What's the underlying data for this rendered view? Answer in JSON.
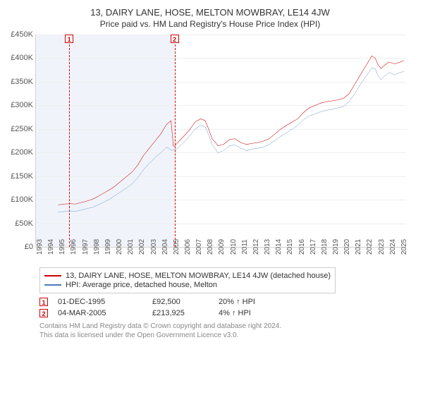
{
  "title": "13, DAIRY LANE, HOSE, MELTON MOWBRAY, LE14 4JW",
  "subtitle": "Price paid vs. HM Land Registry's House Price Index (HPI)",
  "chart": {
    "type": "line",
    "background_color": "#ffffff",
    "grid_color": "#eeeeee",
    "axis_color": "#d0d0d0",
    "pre_shade_color": "#f0f4fa",
    "x_range": [
      1993,
      2025.5
    ],
    "x_ticks": [
      1993,
      1994,
      1995,
      1996,
      1997,
      1998,
      1999,
      2000,
      2001,
      2002,
      2003,
      2004,
      2005,
      2006,
      2007,
      2008,
      2009,
      2010,
      2011,
      2012,
      2013,
      2014,
      2015,
      2016,
      2017,
      2018,
      2019,
      2020,
      2021,
      2022,
      2023,
      2024,
      2025
    ],
    "y_range": [
      0,
      450000
    ],
    "y_ticks": [
      0,
      50000,
      100000,
      150000,
      200000,
      250000,
      300000,
      350000,
      400000,
      450000
    ],
    "y_tick_labels": [
      "£0",
      "£50K",
      "£100K",
      "£150K",
      "£200K",
      "£250K",
      "£300K",
      "£350K",
      "£400K",
      "£450K"
    ],
    "shade_until_x": 2005.2,
    "series": [
      {
        "name": "property",
        "label": "13, DAIRY LANE, HOSE, MELTON MOWBRAY, LE14 4JW (detached house)",
        "color": "#cc0000",
        "line_width": 1.6,
        "points": [
          [
            1995.0,
            90000
          ],
          [
            1995.5,
            92000
          ],
          [
            1995.92,
            92500
          ],
          [
            1996.0,
            93000
          ],
          [
            1996.5,
            92000
          ],
          [
            1997.0,
            95000
          ],
          [
            1997.5,
            98000
          ],
          [
            1998.0,
            102000
          ],
          [
            1998.5,
            108000
          ],
          [
            1999.0,
            115000
          ],
          [
            1999.5,
            122000
          ],
          [
            2000.0,
            130000
          ],
          [
            2000.5,
            140000
          ],
          [
            2001.0,
            150000
          ],
          [
            2001.5,
            160000
          ],
          [
            2002.0,
            175000
          ],
          [
            2002.5,
            195000
          ],
          [
            2003.0,
            210000
          ],
          [
            2003.5,
            225000
          ],
          [
            2004.0,
            240000
          ],
          [
            2004.5,
            260000
          ],
          [
            2004.9,
            268000
          ],
          [
            2005.1,
            215000
          ],
          [
            2005.17,
            213925
          ],
          [
            2005.5,
            222000
          ],
          [
            2006.0,
            235000
          ],
          [
            2006.5,
            248000
          ],
          [
            2007.0,
            265000
          ],
          [
            2007.5,
            272000
          ],
          [
            2007.9,
            268000
          ],
          [
            2008.2,
            250000
          ],
          [
            2008.5,
            230000
          ],
          [
            2008.8,
            222000
          ],
          [
            2009.0,
            215000
          ],
          [
            2009.5,
            218000
          ],
          [
            2010.0,
            228000
          ],
          [
            2010.5,
            230000
          ],
          [
            2011.0,
            222000
          ],
          [
            2011.5,
            218000
          ],
          [
            2012.0,
            220000
          ],
          [
            2012.5,
            222000
          ],
          [
            2013.0,
            225000
          ],
          [
            2013.5,
            230000
          ],
          [
            2014.0,
            240000
          ],
          [
            2014.5,
            250000
          ],
          [
            2015.0,
            258000
          ],
          [
            2015.5,
            265000
          ],
          [
            2016.0,
            272000
          ],
          [
            2016.5,
            285000
          ],
          [
            2017.0,
            295000
          ],
          [
            2017.5,
            300000
          ],
          [
            2018.0,
            305000
          ],
          [
            2018.5,
            308000
          ],
          [
            2019.0,
            310000
          ],
          [
            2019.5,
            312000
          ],
          [
            2020.0,
            315000
          ],
          [
            2020.5,
            325000
          ],
          [
            2021.0,
            345000
          ],
          [
            2021.5,
            365000
          ],
          [
            2022.0,
            385000
          ],
          [
            2022.5,
            405000
          ],
          [
            2022.8,
            400000
          ],
          [
            2023.0,
            388000
          ],
          [
            2023.3,
            378000
          ],
          [
            2023.6,
            385000
          ],
          [
            2024.0,
            392000
          ],
          [
            2024.5,
            388000
          ],
          [
            2025.0,
            392000
          ],
          [
            2025.3,
            395000
          ]
        ]
      },
      {
        "name": "hpi",
        "label": "HPI: Average price, detached house, Melton",
        "color": "#4a7bb5",
        "line_width": 1.2,
        "points": [
          [
            1995.0,
            75000
          ],
          [
            1995.5,
            76000
          ],
          [
            1996.0,
            77000
          ],
          [
            1996.5,
            76500
          ],
          [
            1997.0,
            79000
          ],
          [
            1997.5,
            82000
          ],
          [
            1998.0,
            85000
          ],
          [
            1998.5,
            90000
          ],
          [
            1999.0,
            96000
          ],
          [
            1999.5,
            102000
          ],
          [
            2000.0,
            110000
          ],
          [
            2000.5,
            118000
          ],
          [
            2001.0,
            126000
          ],
          [
            2001.5,
            135000
          ],
          [
            2002.0,
            148000
          ],
          [
            2002.5,
            165000
          ],
          [
            2003.0,
            178000
          ],
          [
            2003.5,
            190000
          ],
          [
            2004.0,
            200000
          ],
          [
            2004.5,
            212000
          ],
          [
            2005.0,
            205000
          ],
          [
            2005.5,
            210000
          ],
          [
            2006.0,
            222000
          ],
          [
            2006.5,
            235000
          ],
          [
            2007.0,
            250000
          ],
          [
            2007.5,
            258000
          ],
          [
            2007.9,
            255000
          ],
          [
            2008.2,
            238000
          ],
          [
            2008.5,
            218000
          ],
          [
            2008.8,
            208000
          ],
          [
            2009.0,
            200000
          ],
          [
            2009.5,
            205000
          ],
          [
            2010.0,
            215000
          ],
          [
            2010.5,
            217000
          ],
          [
            2011.0,
            210000
          ],
          [
            2011.5,
            205000
          ],
          [
            2012.0,
            208000
          ],
          [
            2012.5,
            210000
          ],
          [
            2013.0,
            212000
          ],
          [
            2013.5,
            218000
          ],
          [
            2014.0,
            226000
          ],
          [
            2014.5,
            235000
          ],
          [
            2015.0,
            242000
          ],
          [
            2015.5,
            250000
          ],
          [
            2016.0,
            258000
          ],
          [
            2016.5,
            270000
          ],
          [
            2017.0,
            278000
          ],
          [
            2017.5,
            282000
          ],
          [
            2018.0,
            287000
          ],
          [
            2018.5,
            290000
          ],
          [
            2019.0,
            292000
          ],
          [
            2019.5,
            295000
          ],
          [
            2020.0,
            298000
          ],
          [
            2020.5,
            308000
          ],
          [
            2021.0,
            325000
          ],
          [
            2021.5,
            345000
          ],
          [
            2022.0,
            362000
          ],
          [
            2022.5,
            380000
          ],
          [
            2022.8,
            378000
          ],
          [
            2023.0,
            365000
          ],
          [
            2023.3,
            355000
          ],
          [
            2023.6,
            362000
          ],
          [
            2024.0,
            370000
          ],
          [
            2024.5,
            365000
          ],
          [
            2025.0,
            370000
          ],
          [
            2025.3,
            372000
          ]
        ]
      }
    ],
    "markers": [
      {
        "num": "1",
        "x": 1995.92
      },
      {
        "num": "2",
        "x": 2005.17
      }
    ]
  },
  "legend": {
    "rows": [
      {
        "color": "#cc0000",
        "label": "13, DAIRY LANE, HOSE, MELTON MOWBRAY, LE14 4JW (detached house)"
      },
      {
        "color": "#4a7bb5",
        "label": "HPI: Average price, detached house, Melton"
      }
    ]
  },
  "events": [
    {
      "num": "1",
      "date": "01-DEC-1995",
      "price": "£92,500",
      "delta": "20% ↑ HPI"
    },
    {
      "num": "2",
      "date": "04-MAR-2005",
      "price": "£213,925",
      "delta": "4% ↑ HPI"
    }
  ],
  "footer": {
    "line1": "Contains HM Land Registry data © Crown copyright and database right 2024.",
    "line2": "This data is licensed under the Open Government Licence v3.0."
  }
}
